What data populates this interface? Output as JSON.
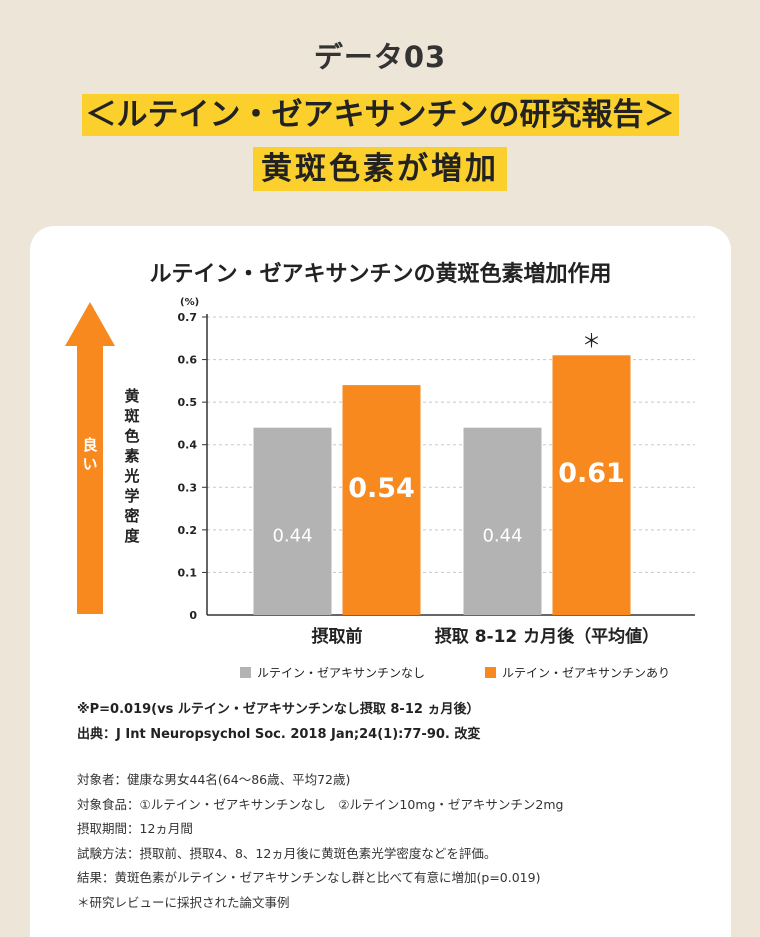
{
  "header": {
    "data_label": "データ03",
    "headline_1": "＜ルテイン・ゼアキサンチンの研究報告＞",
    "headline_2": "黄斑色素が増加"
  },
  "colors": {
    "background": "#ede5d8",
    "highlight": "#fbd02c",
    "accent": "#f7891e",
    "gray": "#b3b3b3"
  },
  "arrow": {
    "label": "良い",
    "icon": "up-arrow-icon"
  },
  "chart_data": {
    "type": "bar",
    "title": "ルテイン・ゼアキサンチンの黄斑色素増加作用",
    "ylabel": "黄斑色素光学密度",
    "unit": "(%)",
    "ylim": [
      0,
      0.7
    ],
    "yticks": [
      "0.7",
      "0.6",
      "0.5",
      "0.4",
      "0.3",
      "0.2",
      "0.1",
      "0"
    ],
    "categories": [
      "摂取前",
      "摂取 8-12 カ月後（平均値）"
    ],
    "series": [
      {
        "name": "ルテイン・ゼアキサンチンなし",
        "values": [
          0.44,
          0.44
        ],
        "labels": [
          "0.44",
          "0.44"
        ],
        "color": "#b3b3b3"
      },
      {
        "name": "ルテイン・ゼアキサンチンあり",
        "values": [
          0.54,
          0.61
        ],
        "labels": [
          "0.54",
          "0.61"
        ],
        "color": "#f7891e"
      }
    ],
    "significance_mark": "＊",
    "grid": true
  },
  "notes": {
    "pvalue": "※P=0.019(vs ルテイン・ゼアキサンチンなし摂取 8-12 ヵ月後）",
    "source": "出典：J Int Neuropsychol Soc. 2018 Jan;24(1):77-90. 改変"
  },
  "details": [
    "対象者：健康な男女44名(64～86歳、平均72歳)",
    "対象食品：①ルテイン・ゼアキサンチンなし　②ルテイン10mg・ゼアキサンチン2mg",
    "摂取期間：12ヵ月間",
    "試験方法：摂取前、摂取4、8、12ヵ月後に黄斑色素光学密度などを評価。",
    "結果：黄斑色素がルテイン・ゼアキサンチンなし群と比べて有意に増加(p=0.019)",
    "＊研究レビューに採択された論文事例"
  ]
}
